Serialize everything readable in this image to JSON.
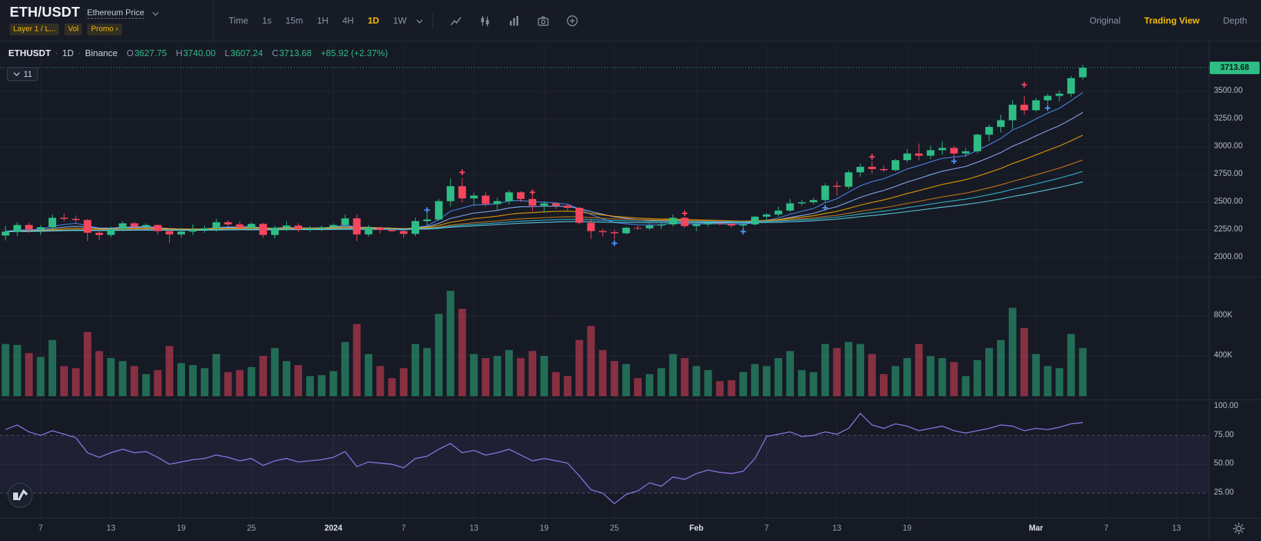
{
  "header": {
    "symbol": "ETH/USDT",
    "symbol_subtitle": "Ethereum Price",
    "tags": [
      "Layer 1 / L...",
      "Vol",
      "Promo ›"
    ],
    "time_label": "Time",
    "intervals": [
      {
        "label": "1s",
        "active": false
      },
      {
        "label": "15m",
        "active": false
      },
      {
        "label": "1H",
        "active": false
      },
      {
        "label": "4H",
        "active": false
      },
      {
        "label": "1D",
        "active": true
      },
      {
        "label": "1W",
        "active": false
      }
    ],
    "toolbar_icons": [
      "chart-line-icon",
      "candlestick-icon",
      "indicators-icon",
      "camera-icon",
      "add-indicator-icon"
    ],
    "view_modes": [
      {
        "label": "Original",
        "active": false
      },
      {
        "label": "Trading View",
        "active": true
      },
      {
        "label": "Depth",
        "active": false
      }
    ]
  },
  "chart_info": {
    "symbol": "ETHUSDT",
    "dot": "·",
    "interval": "1D",
    "exchange": "Binance",
    "ohlc": {
      "o_label": "O",
      "o": "3627.75",
      "h_label": "H",
      "h": "3740.00",
      "l_label": "L",
      "l": "3607.24",
      "c_label": "C",
      "c": "3713.68",
      "change": "+85.92 (+2.37%)"
    }
  },
  "indicator_badge": {
    "count": "11"
  },
  "colors": {
    "accent": "#F0B90B",
    "up": "#2EBD85",
    "down": "#F6465D",
    "rsi": "#8D72DF",
    "grid": "rgba(255,255,255,0.05)",
    "separator": "#2A2E39"
  },
  "chart_data": {
    "type": "candlestick",
    "symbol": "ETHUSDT",
    "interval": "1D",
    "exchange": "Binance",
    "panes": [
      "price+moving-averages",
      "volume",
      "rsi"
    ],
    "price_axis": {
      "last_price": 3713.68,
      "ticks": [
        {
          "label": "3500.00",
          "value": 3500
        },
        {
          "label": "3250.00",
          "value": 3250
        },
        {
          "label": "3000.00",
          "value": 3000
        },
        {
          "label": "2750.00",
          "value": 2750
        },
        {
          "label": "2500.00",
          "value": 2500
        },
        {
          "label": "2250.00",
          "value": 2250
        },
        {
          "label": "2000.00",
          "value": 2000
        }
      ]
    },
    "volume_axis": {
      "unit": "K",
      "ticks": [
        {
          "label": "800K",
          "value": 800
        },
        {
          "label": "400K",
          "value": 400
        }
      ]
    },
    "rsi_axis": {
      "band": [
        25,
        75
      ],
      "ticks": [
        {
          "label": "100.00",
          "value": 100
        },
        {
          "label": "75.00",
          "value": 75
        },
        {
          "label": "50.00",
          "value": 50
        },
        {
          "label": "25.00",
          "value": 25
        }
      ]
    },
    "time_ticks": [
      {
        "label": "7",
        "index": 3
      },
      {
        "label": "13",
        "index": 9
      },
      {
        "label": "19",
        "index": 15
      },
      {
        "label": "25",
        "index": 21
      },
      {
        "label": "2024",
        "index": 28,
        "major": true
      },
      {
        "label": "7",
        "index": 34
      },
      {
        "label": "13",
        "index": 40
      },
      {
        "label": "19",
        "index": 46
      },
      {
        "label": "25",
        "index": 52
      },
      {
        "label": "Feb",
        "index": 59,
        "major": true
      },
      {
        "label": "7",
        "index": 65
      },
      {
        "label": "13",
        "index": 71
      },
      {
        "label": "19",
        "index": 77
      },
      {
        "label": "Mar",
        "index": 88,
        "major": true
      },
      {
        "label": "7",
        "index": 94
      },
      {
        "label": "13",
        "index": 100
      }
    ],
    "ma_periods": [
      7,
      14,
      25,
      45,
      60,
      80
    ],
    "ma_colors": [
      "#4F8DF7",
      "#8FB4F9",
      "#F7A600",
      "#CE7A19",
      "#32BFD6",
      "#63D3EA"
    ],
    "ohlc": [
      [
        2200,
        2285,
        2155,
        2235
      ],
      [
        2235,
        2320,
        2195,
        2295
      ],
      [
        2295,
        2315,
        2225,
        2255
      ],
      [
        2255,
        2295,
        2205,
        2275
      ],
      [
        2275,
        2390,
        2255,
        2360
      ],
      [
        2360,
        2400,
        2330,
        2350
      ],
      [
        2350,
        2380,
        2310,
        2340
      ],
      [
        2340,
        2350,
        2150,
        2225
      ],
      [
        2225,
        2255,
        2160,
        2205
      ],
      [
        2205,
        2280,
        2185,
        2260
      ],
      [
        2260,
        2330,
        2240,
        2310
      ],
      [
        2310,
        2325,
        2250,
        2280
      ],
      [
        2280,
        2310,
        2260,
        2295
      ],
      [
        2295,
        2300,
        2210,
        2240
      ],
      [
        2240,
        2270,
        2130,
        2210
      ],
      [
        2210,
        2270,
        2180,
        2235
      ],
      [
        2235,
        2300,
        2205,
        2255
      ],
      [
        2255,
        2290,
        2225,
        2265
      ],
      [
        2265,
        2350,
        2235,
        2320
      ],
      [
        2320,
        2340,
        2280,
        2300
      ],
      [
        2300,
        2330,
        2250,
        2270
      ],
      [
        2270,
        2320,
        2245,
        2305
      ],
      [
        2305,
        2315,
        2180,
        2205
      ],
      [
        2205,
        2290,
        2175,
        2270
      ],
      [
        2270,
        2330,
        2240,
        2290
      ],
      [
        2290,
        2310,
        2230,
        2255
      ],
      [
        2255,
        2285,
        2235,
        2265
      ],
      [
        2265,
        2290,
        2240,
        2275
      ],
      [
        2275,
        2310,
        2250,
        2295
      ],
      [
        2295,
        2390,
        2265,
        2355
      ],
      [
        2355,
        2390,
        2150,
        2210
      ],
      [
        2210,
        2295,
        2190,
        2270
      ],
      [
        2270,
        2280,
        2220,
        2250
      ],
      [
        2250,
        2270,
        2230,
        2240
      ],
      [
        2240,
        2260,
        2180,
        2215
      ],
      [
        2215,
        2360,
        2195,
        2330
      ],
      [
        2330,
        2400,
        2280,
        2345
      ],
      [
        2345,
        2530,
        2335,
        2510
      ],
      [
        2510,
        2715,
        2460,
        2645
      ],
      [
        2645,
        2720,
        2500,
        2535
      ],
      [
        2535,
        2585,
        2470,
        2560
      ],
      [
        2560,
        2590,
        2460,
        2485
      ],
      [
        2485,
        2540,
        2430,
        2510
      ],
      [
        2510,
        2610,
        2480,
        2590
      ],
      [
        2590,
        2600,
        2500,
        2530
      ],
      [
        2530,
        2560,
        2420,
        2470
      ],
      [
        2470,
        2510,
        2410,
        2490
      ],
      [
        2490,
        2500,
        2440,
        2470
      ],
      [
        2470,
        2480,
        2430,
        2450
      ],
      [
        2450,
        2460,
        2300,
        2315
      ],
      [
        2315,
        2350,
        2170,
        2240
      ],
      [
        2240,
        2260,
        2190,
        2230
      ],
      [
        2230,
        2250,
        2165,
        2220
      ],
      [
        2220,
        2280,
        2210,
        2270
      ],
      [
        2270,
        2290,
        2250,
        2265
      ],
      [
        2265,
        2310,
        2250,
        2290
      ],
      [
        2290,
        2320,
        2260,
        2300
      ],
      [
        2300,
        2390,
        2280,
        2360
      ],
      [
        2360,
        2370,
        2270,
        2285
      ],
      [
        2285,
        2310,
        2240,
        2300
      ],
      [
        2300,
        2330,
        2280,
        2310
      ],
      [
        2310,
        2320,
        2290,
        2305
      ],
      [
        2305,
        2315,
        2270,
        2290
      ],
      [
        2290,
        2330,
        2260,
        2300
      ],
      [
        2300,
        2380,
        2290,
        2370
      ],
      [
        2370,
        2400,
        2330,
        2390
      ],
      [
        2390,
        2460,
        2370,
        2425
      ],
      [
        2425,
        2530,
        2410,
        2490
      ],
      [
        2490,
        2520,
        2470,
        2500
      ],
      [
        2500,
        2540,
        2480,
        2520
      ],
      [
        2520,
        2670,
        2500,
        2650
      ],
      [
        2650,
        2690,
        2560,
        2640
      ],
      [
        2640,
        2790,
        2620,
        2770
      ],
      [
        2770,
        2850,
        2730,
        2820
      ],
      [
        2820,
        2870,
        2760,
        2800
      ],
      [
        2800,
        2830,
        2770,
        2790
      ],
      [
        2790,
        2890,
        2780,
        2880
      ],
      [
        2880,
        2980,
        2860,
        2940
      ],
      [
        2940,
        3030,
        2880,
        2920
      ],
      [
        2920,
        3010,
        2890,
        2970
      ],
      [
        2970,
        3050,
        2930,
        2990
      ],
      [
        2990,
        3010,
        2900,
        2940
      ],
      [
        2940,
        2990,
        2910,
        2960
      ],
      [
        2960,
        3120,
        2940,
        3110
      ],
      [
        3110,
        3200,
        3050,
        3180
      ],
      [
        3180,
        3290,
        3130,
        3240
      ],
      [
        3240,
        3420,
        3160,
        3380
      ],
      [
        3380,
        3460,
        3290,
        3330
      ],
      [
        3330,
        3440,
        3320,
        3420
      ],
      [
        3420,
        3480,
        3380,
        3460
      ],
      [
        3460,
        3510,
        3410,
        3480
      ],
      [
        3480,
        3640,
        3450,
        3620
      ],
      [
        3627.75,
        3740,
        3607.24,
        3713.68
      ]
    ],
    "volume": [
      520,
      510,
      430,
      390,
      560,
      300,
      280,
      640,
      450,
      380,
      350,
      300,
      220,
      260,
      500,
      330,
      310,
      280,
      420,
      240,
      260,
      290,
      400,
      480,
      350,
      310,
      200,
      210,
      250,
      540,
      720,
      420,
      300,
      180,
      280,
      520,
      480,
      820,
      1050,
      870,
      420,
      380,
      400,
      460,
      380,
      450,
      400,
      240,
      200,
      560,
      700,
      460,
      350,
      320,
      180,
      220,
      280,
      420,
      380,
      300,
      260,
      150,
      160,
      240,
      320,
      300,
      380,
      450,
      260,
      240,
      520,
      480,
      540,
      520,
      420,
      220,
      300,
      380,
      520,
      400,
      380,
      340,
      200,
      360,
      480,
      560,
      880,
      680,
      420,
      300,
      280,
      620,
      480
    ],
    "rsi": [
      80,
      84,
      78,
      75,
      79,
      76,
      73,
      60,
      56,
      60,
      63,
      60,
      61,
      56,
      50,
      52,
      54,
      55,
      58,
      56,
      53,
      55,
      49,
      53,
      55,
      52,
      53,
      54,
      56,
      61,
      48,
      52,
      51,
      50,
      47,
      55,
      57,
      63,
      68,
      60,
      62,
      58,
      60,
      63,
      58,
      53,
      55,
      53,
      51,
      40,
      28,
      25,
      16,
      24,
      27,
      34,
      31,
      39,
      37,
      42,
      45,
      43,
      42,
      44,
      55,
      74,
      76,
      78,
      74,
      75,
      78,
      76,
      81,
      94,
      84,
      81,
      85,
      83,
      79,
      81,
      83,
      79,
      77,
      79,
      81,
      84,
      83,
      79,
      81,
      80,
      82,
      85,
      86
    ],
    "markers": [
      {
        "index": 36,
        "price": 2430,
        "color": "#4F8DF7"
      },
      {
        "index": 39,
        "price": 2770,
        "color": "#F6465D"
      },
      {
        "index": 45,
        "price": 2590,
        "color": "#F6465D"
      },
      {
        "index": 52,
        "price": 2130,
        "color": "#4F8DF7"
      },
      {
        "index": 58,
        "price": 2400,
        "color": "#F6465D"
      },
      {
        "index": 63,
        "price": 2235,
        "color": "#4F8DF7"
      },
      {
        "index": 70,
        "price": 2450,
        "color": "#4F8DF7"
      },
      {
        "index": 74,
        "price": 2910,
        "color": "#F6465D"
      },
      {
        "index": 81,
        "price": 2870,
        "color": "#4F8DF7"
      },
      {
        "index": 87,
        "price": 3560,
        "color": "#F6465D"
      },
      {
        "index": 89,
        "price": 3350,
        "color": "#4F8DF7"
      }
    ]
  }
}
